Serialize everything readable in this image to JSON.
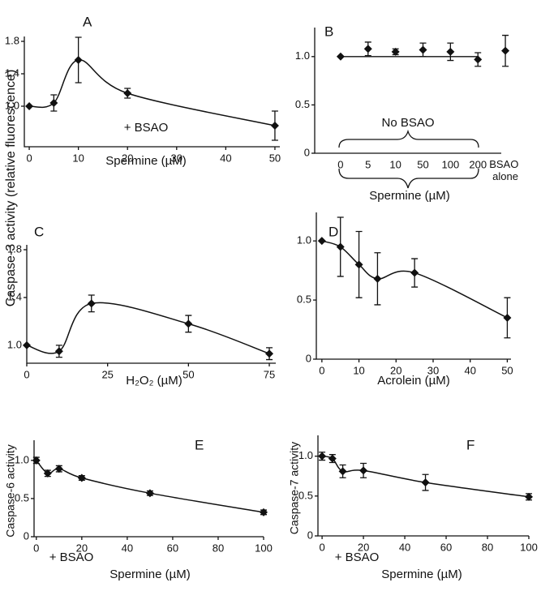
{
  "figure": {
    "ylabel": "Caspase-3 activity (relative fluorescence)"
  },
  "chart_data": [
    {
      "type": "line",
      "label": "A",
      "annotation": "+ BSAO",
      "xlabel": "Spermine (µM)",
      "color": "#111111",
      "x": [
        0,
        5,
        10,
        20,
        50
      ],
      "values": [
        1.0,
        1.04,
        1.57,
        1.16,
        0.76
      ],
      "errors": [
        0,
        0.1,
        0.28,
        0.06,
        0.18
      ],
      "xlim": [
        -1,
        51
      ],
      "xticks": [
        0,
        10,
        20,
        30,
        40,
        50
      ],
      "ylim": [
        0.5,
        1.8
      ],
      "yticks": [
        {
          "value": 1,
          "label": "1.0"
        },
        1.4,
        1.8
      ]
    },
    {
      "type": "scatter",
      "label": "B",
      "annotation": "No BSAO",
      "xlabel": "Spermine (µM)",
      "color": "#111111",
      "categories": [
        "0",
        "5",
        "10",
        "50",
        "100",
        "200",
        "BSAO alone"
      ],
      "values": [
        1.0,
        1.08,
        1.05,
        1.07,
        1.05,
        0.97,
        1.06
      ],
      "errors": [
        0,
        0.07,
        0.03,
        0.07,
        0.09,
        0.07,
        0.16
      ],
      "ylim": [
        0,
        1.25
      ],
      "yticks": [
        0,
        0.5,
        {
          "value": 1,
          "label": "1.0"
        }
      ]
    },
    {
      "type": "line",
      "label": "C",
      "xlabel": "H₂O₂ (µM)",
      "color": "#111111",
      "x": [
        0,
        10,
        20,
        50,
        75
      ],
      "values": [
        1.0,
        0.95,
        1.35,
        1.18,
        0.93
      ],
      "errors": [
        0,
        0.05,
        0.07,
        0.07,
        0.05
      ],
      "xlim": [
        0,
        77
      ],
      "xticks": [
        0,
        25,
        50,
        75
      ],
      "ylim": [
        0.85,
        1.8
      ],
      "yticks": [
        {
          "value": 1,
          "label": "1.0"
        },
        1.4,
        1.8
      ]
    },
    {
      "type": "line",
      "label": "D",
      "xlabel": "Acrolein (µM)",
      "color": "#111111",
      "x": [
        0,
        5,
        10,
        15,
        25,
        50
      ],
      "values": [
        1.0,
        0.95,
        0.8,
        0.68,
        0.73,
        0.35
      ],
      "errors": [
        0,
        0.25,
        0.28,
        0.22,
        0.12,
        0.17
      ],
      "xlim": [
        -1.5,
        51
      ],
      "xticks": [
        0,
        10,
        20,
        30,
        40,
        50
      ],
      "ylim": [
        0,
        1.2
      ],
      "yticks": [
        0,
        0.5,
        {
          "value": 1,
          "label": "1.0"
        }
      ]
    },
    {
      "type": "line",
      "label": "E",
      "annotation": "+ BSAO",
      "xlabel": "Spermine (µM)",
      "ylabel": "Caspase-6 activity",
      "color": "#111111",
      "x": [
        0,
        5,
        10,
        20,
        50,
        100
      ],
      "values": [
        1.0,
        0.83,
        0.89,
        0.77,
        0.57,
        0.32
      ],
      "errors": [
        0.04,
        0.04,
        0.04,
        0.03,
        0.03,
        0.03
      ],
      "xlim": [
        -1,
        100
      ],
      "xticks": [
        0,
        20,
        40,
        60,
        80,
        100
      ],
      "ylim": [
        0,
        1.2
      ],
      "yticks": [
        0,
        0.5,
        {
          "value": 1,
          "label": "1.0"
        }
      ]
    },
    {
      "type": "line",
      "label": "F",
      "annotation": "+ BSAO",
      "xlabel": "Spermine (µM)",
      "ylabel": "Caspase-7 activity",
      "color": "#111111",
      "x": [
        0,
        5,
        10,
        20,
        50,
        100
      ],
      "values": [
        1.0,
        0.97,
        0.81,
        0.82,
        0.67,
        0.49
      ],
      "errors": [
        0.05,
        0.05,
        0.08,
        0.09,
        0.1,
        0.04
      ],
      "xlim": [
        -2,
        100
      ],
      "xticks": [
        0,
        20,
        40,
        60,
        80,
        100
      ],
      "ylim": [
        0,
        1.2
      ],
      "yticks": [
        0,
        0.5,
        {
          "value": 1,
          "label": "1.0"
        }
      ]
    }
  ]
}
